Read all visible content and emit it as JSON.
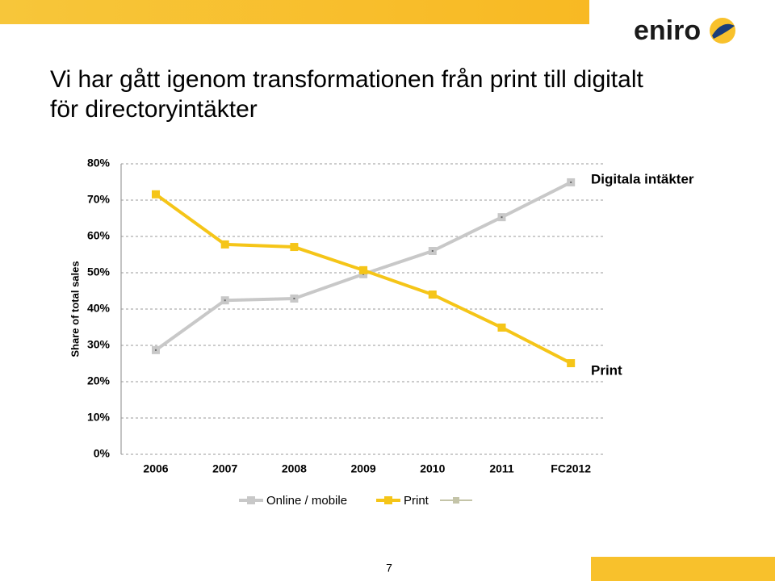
{
  "logo": "eniro",
  "page_number": "7",
  "chart_data": {
    "type": "line",
    "title": "Vi har gått igenom transformationen från print till digitalt för directoryintäkter",
    "title_lines": [
      "Vi har gått igenom transformationen från print till digitalt",
      "för directoryintäkter"
    ],
    "y_label": "Share of total sales",
    "categories": [
      "2006",
      "2007",
      "2008",
      "2009",
      "2010",
      "2011",
      "FC2012"
    ],
    "series": [
      {
        "name": "Online / mobile",
        "color": "#c8c8c8",
        "values": [
          28.7,
          42.4,
          42.9,
          49.6,
          56.0,
          65.3,
          74.9
        ]
      },
      {
        "name": "Print",
        "color": "#f5c518",
        "values": [
          71.6,
          57.8,
          57.1,
          50.7,
          44.0,
          34.9,
          25.1
        ]
      }
    ],
    "annotations": [
      "Digitala intäkter",
      "Print"
    ],
    "ylim": [
      0,
      80
    ],
    "yticks": [
      {
        "value": 0,
        "label": "0%"
      },
      {
        "value": 10,
        "label": "10%"
      },
      {
        "value": 20,
        "label": "20%"
      },
      {
        "value": 30,
        "label": "30%"
      },
      {
        "value": 40,
        "label": "40%"
      },
      {
        "value": 50,
        "label": "50%"
      },
      {
        "value": 60,
        "label": "60%"
      },
      {
        "value": 70,
        "label": "70%"
      },
      {
        "value": 80,
        "label": "80%"
      }
    ],
    "grid": true
  }
}
